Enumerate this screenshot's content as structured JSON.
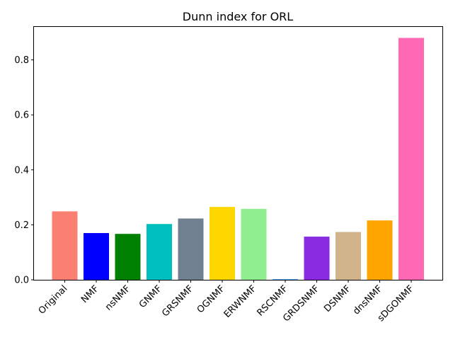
{
  "chart_data": {
    "type": "bar",
    "title": "Dunn index for ORL",
    "xlabel": "",
    "ylabel": "",
    "categories": [
      "Original",
      "NMF",
      "nsNMF",
      "GNMF",
      "GRSNMF",
      "OGNMF",
      "ERWNMF",
      "RSCNMF",
      "GRDSNMF",
      "DSNMF",
      "dnsNMF",
      "sDGONMF"
    ],
    "values": [
      0.249,
      0.17,
      0.167,
      0.203,
      0.223,
      0.265,
      0.258,
      0.002,
      0.157,
      0.174,
      0.216,
      0.88
    ],
    "colors": [
      "#fa8072",
      "#0000ff",
      "#008000",
      "#00bfbf",
      "#708090",
      "#ffd700",
      "#90ee90",
      "#1e90ff",
      "#8a2be2",
      "#d2b48c",
      "#ffa500",
      "#ff69b4"
    ],
    "ylim": [
      0,
      0.92
    ],
    "yticks": [
      0.0,
      0.2,
      0.4,
      0.6,
      0.8
    ],
    "ytick_labels": [
      "0.0",
      "0.2",
      "0.4",
      "0.6",
      "0.8"
    ],
    "grid": false,
    "legend": "none"
  }
}
